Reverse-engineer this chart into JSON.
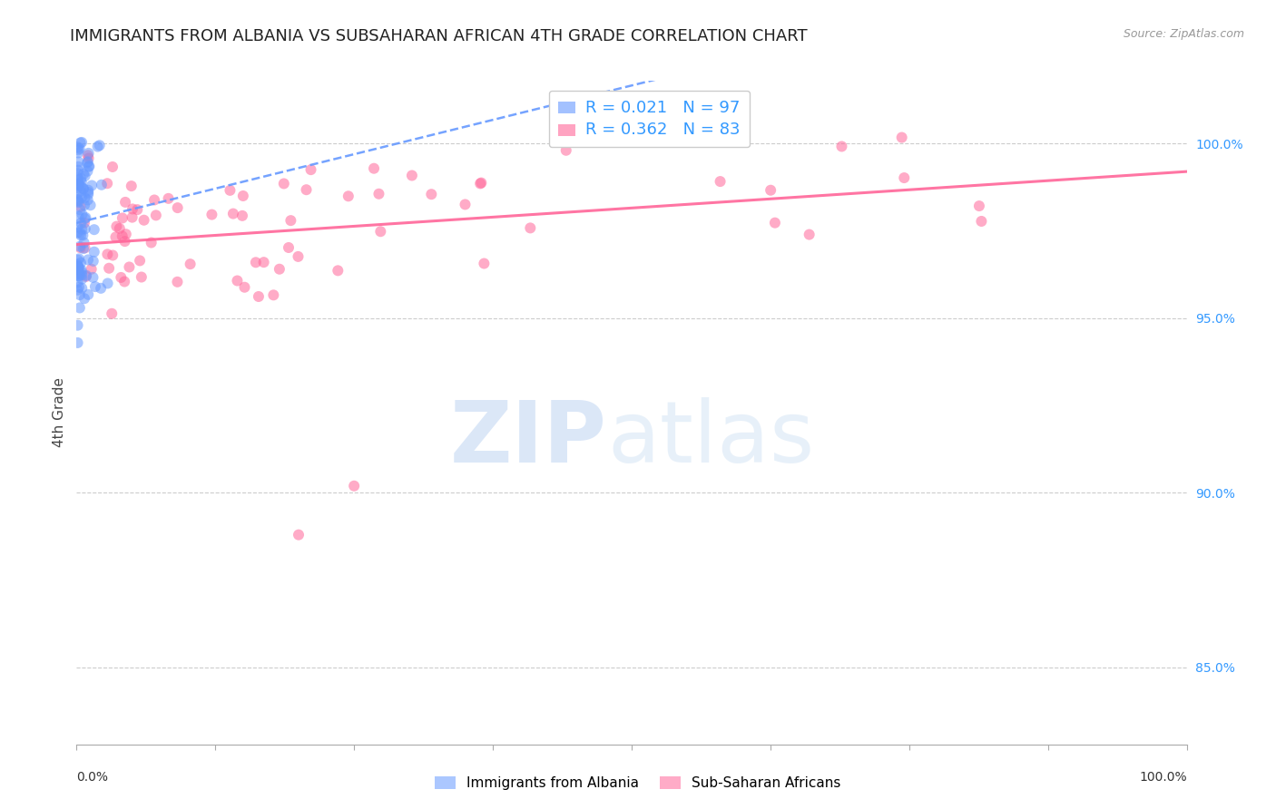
{
  "title": "IMMIGRANTS FROM ALBANIA VS SUBSAHARAN AFRICAN 4TH GRADE CORRELATION CHART",
  "source": "Source: ZipAtlas.com",
  "ylabel": "4th Grade",
  "xlim": [
    0.0,
    1.0
  ],
  "ylim": [
    0.828,
    1.018
  ],
  "yticks": [
    0.85,
    0.9,
    0.95,
    1.0
  ],
  "ytick_labels": [
    "85.0%",
    "90.0%",
    "95.0%",
    "100.0%"
  ],
  "albania_R": "0.021",
  "albania_N": "97",
  "subsaharan_R": "0.362",
  "subsaharan_N": "83",
  "albania_color": "#6699ff",
  "subsaharan_color": "#ff6699",
  "legend_label_albania": "Immigrants from Albania",
  "legend_label_subsaharan": "Sub-Saharan Africans",
  "background_color": "#ffffff",
  "grid_color": "#cccccc",
  "title_fontsize": 13,
  "label_fontsize": 11,
  "tick_fontsize": 10,
  "xtick_minor_count": 8
}
